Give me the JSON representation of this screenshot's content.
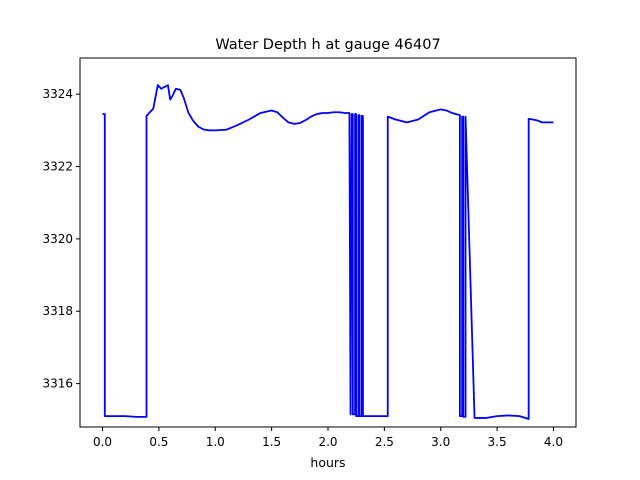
{
  "chart_data": {
    "type": "line",
    "title": "Water Depth h at gauge 46407",
    "xlabel": "hours",
    "ylabel": "",
    "xlim": [
      -0.2,
      4.2
    ],
    "ylim": [
      3314.8,
      3325.0
    ],
    "xticks": [
      0.0,
      0.5,
      1.0,
      1.5,
      2.0,
      2.5,
      3.0,
      3.5,
      4.0
    ],
    "xtick_labels": [
      "0.0",
      "0.5",
      "1.0",
      "1.5",
      "2.0",
      "2.5",
      "3.0",
      "3.5",
      "4.0"
    ],
    "yticks": [
      3316,
      3318,
      3320,
      3322,
      3324
    ],
    "ytick_labels": [
      "3316",
      "3318",
      "3320",
      "3322",
      "3324"
    ],
    "grid": false,
    "colors": {
      "series": "#0000ff",
      "axes": "#000000",
      "background": "#ffffff"
    },
    "series": [
      {
        "x": [
          0.0,
          0.02,
          0.02,
          0.1,
          0.2,
          0.3,
          0.39,
          0.39,
          0.45,
          0.49,
          0.52,
          0.55,
          0.58,
          0.6,
          0.62,
          0.65,
          0.69,
          0.72,
          0.76,
          0.8,
          0.85,
          0.9,
          0.95,
          1.0,
          1.1,
          1.2,
          1.3,
          1.4,
          1.5,
          1.55,
          1.6,
          1.65,
          1.7,
          1.75,
          1.8,
          1.85,
          1.9,
          1.95,
          2.0,
          2.05,
          2.1,
          2.15,
          2.19,
          2.2,
          2.21,
          2.22,
          2.22,
          2.24,
          2.24,
          2.25,
          2.25,
          2.27,
          2.27,
          2.28,
          2.28,
          2.3,
          2.3,
          2.31,
          2.31,
          2.4,
          2.5,
          2.53,
          2.53,
          2.6,
          2.7,
          2.8,
          2.9,
          3.0,
          3.05,
          3.1,
          3.17,
          3.17,
          3.19,
          3.19,
          3.2,
          3.2,
          3.22,
          3.22,
          3.3,
          3.4,
          3.5,
          3.6,
          3.7,
          3.78,
          3.78,
          3.85,
          3.9,
          3.95,
          4.0
        ],
        "y": [
          3323.45,
          3323.45,
          3315.1,
          3315.1,
          3315.1,
          3315.08,
          3315.08,
          3323.4,
          3323.6,
          3324.25,
          3324.15,
          3324.2,
          3324.25,
          3323.85,
          3323.95,
          3324.15,
          3324.12,
          3323.9,
          3323.5,
          3323.28,
          3323.1,
          3323.02,
          3323.0,
          3323.0,
          3323.02,
          3323.15,
          3323.3,
          3323.48,
          3323.55,
          3323.5,
          3323.35,
          3323.22,
          3323.18,
          3323.2,
          3323.28,
          3323.38,
          3323.45,
          3323.48,
          3323.48,
          3323.5,
          3323.5,
          3323.48,
          3323.48,
          3315.15,
          3323.45,
          3323.45,
          3315.15,
          3315.15,
          3323.45,
          3323.45,
          3315.1,
          3315.1,
          3323.42,
          3323.42,
          3315.1,
          3315.1,
          3323.4,
          3323.4,
          3315.1,
          3315.1,
          3315.1,
          3315.1,
          3323.38,
          3323.3,
          3323.22,
          3323.3,
          3323.5,
          3323.58,
          3323.55,
          3323.48,
          3323.42,
          3315.1,
          3315.1,
          3323.38,
          3323.38,
          3315.08,
          3315.08,
          3323.38,
          3315.05,
          3315.05,
          3315.1,
          3315.12,
          3315.1,
          3315.02,
          3323.32,
          3323.28,
          3323.22,
          3323.22,
          3323.22
        ]
      }
    ]
  }
}
